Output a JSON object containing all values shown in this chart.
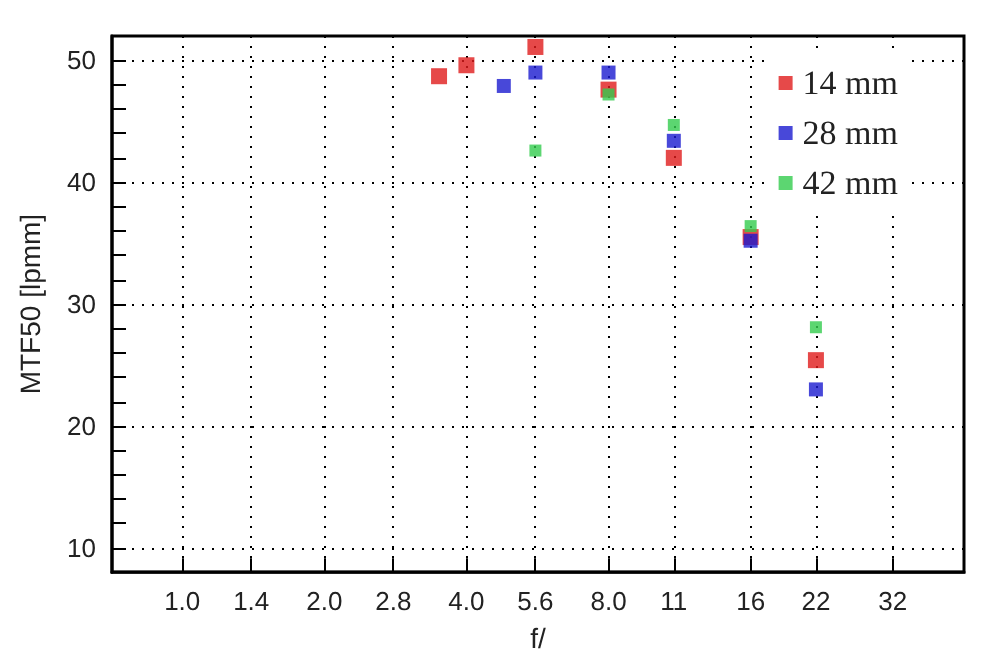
{
  "chart_data": {
    "type": "scatter",
    "xlabel": "f/",
    "ylabel": "MTF50 [lpmm]",
    "log": "x",
    "xlim": [
      0.71,
      45.3
    ],
    "ylim": [
      8,
      52
    ],
    "xticks": [
      {
        "value": 1,
        "label": "1.0"
      },
      1.4,
      {
        "value": 2,
        "label": "2.0"
      },
      2.8,
      {
        "value": 4,
        "label": "4.0"
      },
      5.6,
      {
        "value": 8,
        "label": "8.0"
      },
      11,
      16,
      22,
      32
    ],
    "yticks": [
      10,
      20,
      30,
      40,
      50
    ],
    "grid": true,
    "legend": "top right",
    "marker": "square",
    "series": [
      {
        "name": "14 mm",
        "color": "#e01c1c",
        "x": [
          3.5,
          4,
          5.6,
          8,
          11,
          16,
          22
        ],
        "values": [
          48.7,
          49.6,
          51.1,
          47.6,
          42.0,
          35.5,
          25.4
        ]
      },
      {
        "name": "28 mm",
        "color": "#1a1ad0",
        "x": [
          4.8,
          5.6,
          8,
          11,
          16,
          22
        ],
        "values": [
          47.9,
          49.0,
          49.0,
          43.4,
          35.2,
          23.0
        ]
      },
      {
        "name": "42 mm",
        "color": "#33cc4d",
        "x": [
          5.6,
          8,
          11,
          16,
          22
        ],
        "values": [
          42.6,
          47.2,
          44.7,
          36.4,
          28.1
        ]
      }
    ]
  }
}
